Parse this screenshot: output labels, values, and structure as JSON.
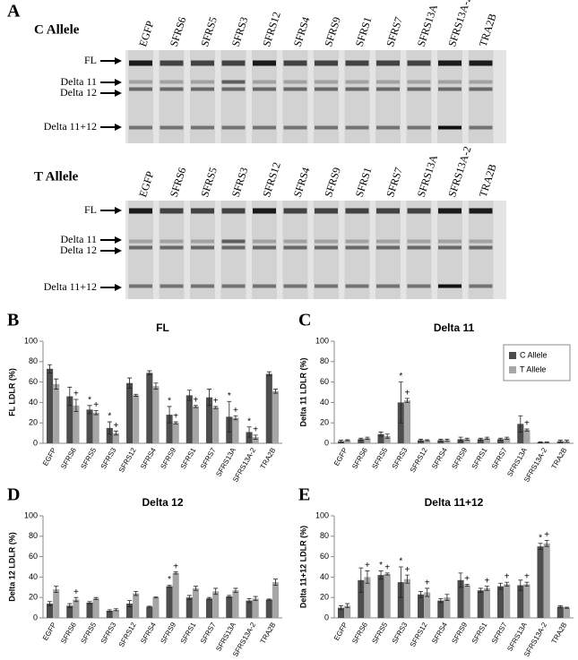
{
  "gel": {
    "panel": "A",
    "gels": [
      {
        "title": "C Allele",
        "lanes": [
          "EGFP",
          "SFRS6",
          "SFRS5",
          "SFRS3",
          "SFRS12",
          "SFRS4",
          "SFRS9",
          "SFRS1",
          "SFRS7",
          "SFRS13A",
          "SFRS13A-2",
          "TRA2B"
        ],
        "bands": [
          "FL",
          "Delta 11",
          "Delta 12",
          "Delta 11+12"
        ]
      },
      {
        "title": "T Allele",
        "lanes": [
          "EGFP",
          "SFRS6",
          "SFRS5",
          "SFRS3",
          "SFRS12",
          "SFRS4",
          "SFRS9",
          "SFRS1",
          "SFRS7",
          "SFRS13A",
          "SFRS13A-2",
          "TRA2B"
        ],
        "bands": [
          "FL",
          "Delta 11",
          "Delta 12",
          "Delta 11+12"
        ]
      }
    ]
  },
  "chart_data": [
    {
      "type": "bar",
      "panel": "B",
      "title": "FL",
      "y_label": "FL LDLR (%)",
      "categories": [
        "EGFP",
        "SFRS6",
        "SFRS5",
        "SFRS3",
        "SFRS12",
        "SFRS4",
        "SFRS9",
        "SFRS1",
        "SFRS7",
        "SFRS13A",
        "SFRS13A-2",
        "TRA2B"
      ],
      "ylim": [
        0,
        100
      ],
      "yticks": [
        0,
        20,
        40,
        60,
        80,
        100
      ],
      "series": [
        {
          "name": "C Allele",
          "color": "#4d4d4d",
          "values": [
            73,
            46,
            33,
            15,
            59,
            69,
            28,
            47,
            45,
            26,
            11,
            68
          ],
          "errors": [
            4,
            9,
            4,
            6,
            5,
            2,
            8,
            5,
            8,
            15,
            5,
            2
          ],
          "markers": [
            null,
            null,
            "*",
            "*",
            null,
            null,
            "*",
            null,
            null,
            "*",
            "*",
            null
          ]
        },
        {
          "name": "T Allele",
          "color": "#a6a6a6",
          "values": [
            58,
            37,
            30,
            10,
            47,
            56,
            20,
            36,
            35,
            25,
            6,
            51
          ],
          "errors": [
            5,
            6,
            2,
            2,
            1,
            3,
            1,
            1,
            1,
            2,
            2,
            2
          ],
          "markers": [
            null,
            "+",
            "+",
            "+",
            null,
            null,
            "+",
            "+",
            "+",
            "+",
            "+",
            null
          ]
        }
      ]
    },
    {
      "type": "bar",
      "panel": "C",
      "title": "Delta 11",
      "y_label": "Delta 11 LDLR (%)",
      "categories": [
        "EGFP",
        "SFRS6",
        "SFRS5",
        "SFRS3",
        "SFRS12",
        "SFRS4",
        "SFRS9",
        "SFRS1",
        "SFRS7",
        "SFRS13A",
        "SFRS13A-2",
        "TRA2B"
      ],
      "ylim": [
        0,
        100
      ],
      "yticks": [
        0,
        20,
        40,
        60,
        80,
        100
      ],
      "legend": "upper right",
      "series": [
        {
          "name": "C Allele",
          "color": "#4d4d4d",
          "values": [
            2,
            4,
            9,
            40,
            3,
            3,
            4,
            4,
            4,
            19,
            1,
            2
          ],
          "errors": [
            1,
            1,
            2,
            20,
            1,
            1,
            2,
            1,
            1,
            8,
            0.5,
            1
          ],
          "markers": [
            null,
            null,
            null,
            "*",
            null,
            null,
            null,
            null,
            null,
            null,
            null,
            null
          ]
        },
        {
          "name": "T Allele",
          "color": "#a6a6a6",
          "values": [
            3,
            5,
            7,
            42,
            3,
            3,
            4,
            5,
            5,
            13,
            1,
            2
          ],
          "errors": [
            0.5,
            1,
            2,
            2,
            0.5,
            1,
            1,
            1,
            1,
            1,
            0.3,
            1
          ],
          "markers": [
            null,
            null,
            null,
            "+",
            null,
            null,
            null,
            null,
            null,
            "+",
            null,
            null
          ]
        }
      ]
    },
    {
      "type": "bar",
      "panel": "D",
      "title": "Delta 12",
      "y_label": "Delta 12 LDLR (%)",
      "categories": [
        "EGFP",
        "SFRS6",
        "SFRS5",
        "SFRS3",
        "SFRS12",
        "SFRS4",
        "SFRS9",
        "SFRS1",
        "SFRS7",
        "SFRS13A",
        "SFRS13A-2",
        "TRA2B"
      ],
      "ylim": [
        0,
        100
      ],
      "yticks": [
        0,
        20,
        40,
        60,
        80,
        100
      ],
      "series": [
        {
          "name": "C Allele",
          "color": "#4d4d4d",
          "values": [
            14,
            12,
            15,
            7,
            14,
            11,
            31,
            20,
            19,
            21,
            17,
            18
          ],
          "errors": [
            2,
            2,
            1,
            1,
            3,
            0.5,
            1,
            2,
            1,
            1,
            2,
            0.5
          ],
          "markers": [
            null,
            null,
            null,
            null,
            null,
            null,
            "*",
            null,
            null,
            null,
            null,
            null
          ]
        },
        {
          "name": "T Allele",
          "color": "#a6a6a6",
          "values": [
            28,
            18,
            19,
            8,
            24,
            20,
            44,
            29,
            26,
            27,
            19,
            35
          ],
          "errors": [
            3,
            2,
            1,
            1,
            2,
            0.5,
            1,
            2,
            3,
            2,
            2,
            3
          ],
          "markers": [
            null,
            "+",
            null,
            null,
            null,
            null,
            "+",
            null,
            null,
            null,
            null,
            null
          ]
        }
      ]
    },
    {
      "type": "bar",
      "panel": "E",
      "title": "Delta 11+12",
      "y_label": "Delta 11+12 LDLR (%)",
      "categories": [
        "EGFP",
        "SFRS6",
        "SFRS5",
        "SFRS3",
        "SFRS12",
        "SFRS4",
        "SFRS9",
        "SFRS1",
        "SFRS7",
        "SFRS13A",
        "SFRS13A-2",
        "TRA2B"
      ],
      "ylim": [
        0,
        100
      ],
      "yticks": [
        0,
        20,
        40,
        60,
        80,
        100
      ],
      "series": [
        {
          "name": "C Allele",
          "color": "#4d4d4d",
          "values": [
            10,
            37,
            42,
            35,
            23,
            17,
            37,
            27,
            31,
            32,
            70,
            11
          ],
          "errors": [
            2,
            12,
            4,
            15,
            3,
            2,
            7,
            2,
            3,
            5,
            3,
            1
          ],
          "markers": [
            null,
            null,
            "*",
            "*",
            null,
            null,
            null,
            null,
            null,
            null,
            "*",
            null
          ]
        },
        {
          "name": "T Allele",
          "color": "#a6a6a6",
          "values": [
            12,
            40,
            43,
            38,
            25,
            20,
            32,
            29,
            33,
            33,
            73,
            10
          ],
          "errors": [
            2,
            6,
            1,
            4,
            4,
            3,
            1,
            2,
            2,
            2,
            3,
            0.5
          ],
          "markers": [
            null,
            "+",
            "+",
            "+",
            "+",
            null,
            "+",
            "+",
            "+",
            "+",
            "+",
            null
          ]
        }
      ]
    }
  ]
}
